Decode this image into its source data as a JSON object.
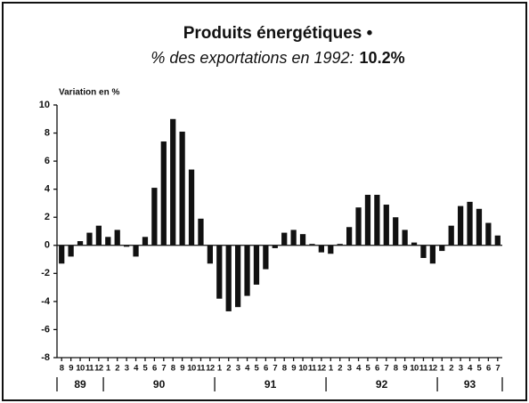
{
  "chart_data": {
    "type": "bar",
    "title": "Produits énergétiques •",
    "subtitle": "% des exportations en 1992:",
    "subtitle_emphasis": "10.2%",
    "y_label": "Variation en %",
    "categories": [
      "8",
      "9",
      "10",
      "11",
      "12",
      "1",
      "2",
      "3",
      "4",
      "5",
      "6",
      "7",
      "8",
      "9",
      "10",
      "11",
      "12",
      "1",
      "2",
      "3",
      "4",
      "5",
      "6",
      "7",
      "8",
      "9",
      "10",
      "11",
      "12",
      "1",
      "2",
      "3",
      "4",
      "5",
      "6",
      "7",
      "8",
      "9",
      "10",
      "11",
      "12",
      "1",
      "2",
      "3",
      "4",
      "5",
      "6",
      "7"
    ],
    "year_labels": [
      "89",
      "90",
      "91",
      "92",
      "93"
    ],
    "values": [
      -1.3,
      -0.8,
      0.3,
      0.9,
      1.4,
      0.6,
      1.1,
      -0.1,
      -0.8,
      0.6,
      4.1,
      7.4,
      9.0,
      8.1,
      5.4,
      1.9,
      -1.3,
      -3.8,
      -4.7,
      -4.4,
      -3.6,
      -2.8,
      -1.7,
      -0.2,
      0.9,
      1.1,
      0.8,
      0.1,
      -0.5,
      -0.6,
      0.1,
      1.3,
      2.7,
      3.6,
      3.6,
      2.9,
      2.0,
      1.1,
      0.2,
      -0.9,
      -1.3,
      -0.4,
      1.4,
      2.8,
      3.1,
      2.6,
      1.6,
      0.7
    ],
    "color": "#111111",
    "ylim": [
      -8,
      10
    ],
    "yticks": [
      -8,
      -6,
      -4,
      -2,
      0,
      2,
      4,
      6,
      8,
      10
    ],
    "grid": false
  }
}
